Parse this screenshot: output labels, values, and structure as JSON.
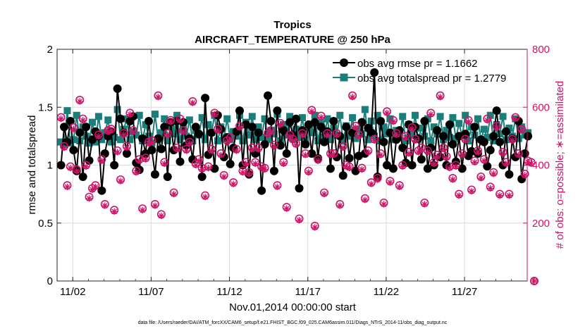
{
  "chart_data": {
    "type": "line",
    "title": "Tropics",
    "subtitle": "AIRCRAFT_TEMPERATURE @ 250 hPa",
    "xlabel": "Nov.01,2014 00:00:00 start",
    "ylabel_left": "rmse and totalspread",
    "ylabel_right": "# of obs: o=possible; ∗=assimilated",
    "footnote": "data file: /Users/raeder/DAI/ATM_forcXX/CAM6_setup/f.e21.FHIST_BGC.f09_025.CAM6assim.011/Diags_NTrS_2014-11/obs_diag_output.nc",
    "x_range_days": [
      0.0,
      30.0
    ],
    "x_ticks": [
      {
        "day": 1,
        "label": "11/02"
      },
      {
        "day": 6,
        "label": "11/07"
      },
      {
        "day": 11,
        "label": "11/12"
      },
      {
        "day": 16,
        "label": "11/17"
      },
      {
        "day": 21,
        "label": "11/22"
      },
      {
        "day": 26,
        "label": "11/27"
      }
    ],
    "ylim_left": [
      0,
      2
    ],
    "yticks_left": [
      "0",
      "0.5",
      "1",
      "1.5",
      "2"
    ],
    "ylim_right": [
      0,
      800
    ],
    "yticks_right": [
      "0",
      "200",
      "400",
      "600",
      "800"
    ],
    "grid": true,
    "legend_position": "top-right",
    "series": [
      {
        "name": "obs avg rmse pr = 1.1662",
        "axis": "left",
        "color": "#000000",
        "marker": "circle",
        "values": [
          1.0,
          1.33,
          1.2,
          1.38,
          1.13,
          0.95,
          1.28,
          0.9,
          1.33,
          1.04,
          1.22,
          1.29,
          1.25,
          0.78,
          1.1,
          1.25,
          1.29,
          1.0,
          1.66,
          1.4,
          1.28,
          1.1,
          1.38,
          1.42,
          1.02,
          0.96,
          1.23,
          1.1,
          1.38,
          1.13,
          0.92,
          1.23,
          1.14,
          1.33,
          0.9,
          1.37,
          1.13,
          1.38,
          1.03,
          1.37,
          1.17,
          1.23,
          1.05,
          1.33,
          1.27,
          0.9,
          1.58,
          1.09,
          1.28,
          0.97,
          1.43,
          1.31,
          1.07,
          1.24,
          1.01,
          1.15,
          1.29,
          1.47,
          1.0,
          1.35,
          0.92,
          1.33,
          1.1,
          1.28,
          0.78,
          1.18,
          1.6,
          1.38,
          0.95,
          1.47,
          1.17,
          1.3,
          1.1,
          1.37,
          1.26,
          1.4,
          0.8,
          1.3,
          1.18,
          1.35,
          1.1,
          1.37,
          1.06,
          1.33,
          1.2,
          1.29,
          0.97,
          1.38,
          1.07,
          1.25,
          0.91,
          1.33,
          1.06,
          1.28,
          0.95,
          1.08,
          1.37,
          1.1,
          1.32,
          1.28,
          1.8,
          0.9,
          1.38,
          1.2,
          1.0,
          1.28,
          0.97,
          1.22,
          1.3,
          1.15,
          1.02,
          1.35,
          1.0,
          1.33,
          1.23,
          1.05,
          1.38,
          0.97,
          1.15,
          1.0,
          1.3,
          1.07,
          1.25,
          1.0,
          1.35,
          1.18,
          1.03,
          1.25,
          0.97,
          1.27,
          1.08,
          1.12,
          1.33,
          1.1,
          1.22,
          1.2,
          0.99,
          1.13,
          1.25,
          1.47,
          1.2,
          1.0,
          1.29,
          0.92,
          1.23,
          1.07,
          1.38,
          0.88,
          1.1,
          1.25
        ]
      },
      {
        "name": "obs avg totalspread pr = 1.2779",
        "axis": "left",
        "color": "#1a7f7a",
        "marker": "square",
        "values": [
          1.2,
          1.18,
          1.47,
          1.19,
          1.22,
          1.43,
          1.21,
          1.33,
          1.25,
          1.19,
          1.37,
          1.2,
          1.42,
          1.22,
          1.28,
          1.39,
          1.2,
          1.24,
          1.48,
          1.22,
          1.31,
          1.4,
          1.22,
          1.29,
          1.26,
          1.43,
          1.21,
          1.35,
          1.25,
          1.19,
          1.44,
          1.22,
          1.28,
          1.4,
          1.21,
          1.33,
          1.27,
          1.43,
          1.22,
          1.32,
          1.25,
          1.39,
          1.21,
          1.3,
          1.26,
          1.41,
          1.22,
          1.35,
          1.28,
          1.43,
          1.21,
          1.33,
          1.23,
          1.4,
          1.22,
          1.29,
          1.25,
          1.43,
          1.21,
          1.37,
          1.26,
          1.42,
          1.22,
          1.33,
          1.24,
          1.4,
          1.22,
          1.3,
          1.27,
          1.44,
          1.21,
          1.35,
          1.26,
          1.42,
          1.23,
          1.31,
          1.24,
          1.41,
          1.22,
          1.33,
          1.28,
          1.43,
          1.21,
          1.36,
          1.24,
          1.4,
          1.22,
          1.32,
          1.26,
          1.43,
          1.21,
          1.34,
          1.25,
          1.41,
          1.23,
          1.31,
          1.27,
          1.48,
          1.22,
          1.38,
          1.25,
          1.43,
          1.21,
          1.33,
          1.27,
          1.4,
          1.22,
          1.3,
          1.24,
          1.42,
          1.21,
          1.35,
          1.26,
          1.43,
          1.22,
          1.32,
          1.25,
          1.4,
          1.21,
          1.33,
          1.27,
          1.42,
          1.22,
          1.3,
          1.24,
          1.41,
          1.23,
          1.36,
          1.25,
          1.43,
          1.21,
          1.33,
          1.26,
          1.4,
          1.22,
          1.31,
          1.24,
          1.43,
          1.21,
          1.35,
          1.27,
          1.42,
          1.22,
          1.32,
          1.25,
          1.4,
          1.23,
          1.33,
          1.26,
          1.28
        ]
      },
      {
        "name": "# of obs possible",
        "axis": "right",
        "color": "#cc1466",
        "marker": "o",
        "values": [
          565,
          465,
          330,
          395,
          530,
          385,
          625,
          560,
          400,
          290,
          320,
          330,
          505,
          420,
          265,
          520,
          525,
          245,
          450,
          350,
          510,
          465,
          580,
          520,
          380,
          420,
          250,
          425,
          480,
          485,
          265,
          640,
          230,
          410,
          510,
          555,
          305,
          460,
          560,
          520,
          455,
          480,
          620,
          405,
          420,
          390,
          295,
          395,
          455,
          580,
          525,
          440,
          365,
          485,
          495,
          340,
          455,
          535,
          380,
          410,
          375,
          460,
          410,
          460,
          395,
          390,
          510,
          520,
          470,
          330,
          545,
          410,
          255,
          505,
          490,
          475,
          215,
          510,
          440,
          380,
          590,
          190,
          420,
          570,
          305,
          510,
          440,
          440,
          510,
          265,
          465,
          400,
          395,
          640,
          535,
          505,
          390,
          285,
          450,
          340,
          490,
          355,
          440,
          270,
          585,
          345,
          555,
          510,
          330,
          400,
          500,
          445,
          530,
          490,
          450,
          460,
          270,
          450,
          580,
          410,
          435,
          640,
          460,
          430,
          395,
          355,
          400,
          300,
          440,
          490,
          555,
          315,
          415,
          450,
          360,
          420,
          560,
          325,
          375,
          535,
          300,
          445,
          410,
          300,
          490,
          565,
          440,
          525,
          370,
          415,
          410,
          0
        ]
      },
      {
        "name": "# of obs assimilated",
        "axis": "right",
        "color": "#cc1466",
        "marker": "asterisk",
        "values": [
          560,
          460,
          325,
          390,
          525,
          380,
          620,
          555,
          395,
          285,
          315,
          325,
          500,
          415,
          260,
          515,
          520,
          240,
          445,
          345,
          505,
          460,
          575,
          515,
          375,
          415,
          245,
          420,
          475,
          480,
          260,
          635,
          225,
          405,
          505,
          550,
          300,
          455,
          555,
          515,
          450,
          475,
          615,
          400,
          415,
          385,
          290,
          390,
          450,
          575,
          520,
          435,
          360,
          480,
          490,
          335,
          450,
          530,
          375,
          405,
          370,
          455,
          405,
          455,
          390,
          385,
          505,
          515,
          465,
          325,
          540,
          405,
          250,
          500,
          485,
          470,
          210,
          505,
          435,
          375,
          585,
          185,
          415,
          565,
          300,
          505,
          435,
          435,
          505,
          260,
          460,
          395,
          390,
          635,
          530,
          500,
          385,
          280,
          445,
          335,
          485,
          350,
          435,
          265,
          580,
          340,
          550,
          505,
          325,
          395,
          495,
          440,
          525,
          485,
          445,
          455,
          265,
          445,
          575,
          405,
          430,
          635,
          455,
          425,
          390,
          350,
          395,
          295,
          435,
          485,
          550,
          310,
          410,
          445,
          355,
          415,
          555,
          320,
          370,
          530,
          295,
          440,
          405,
          295,
          485,
          560,
          435,
          520,
          365,
          410,
          405,
          0
        ]
      }
    ]
  }
}
